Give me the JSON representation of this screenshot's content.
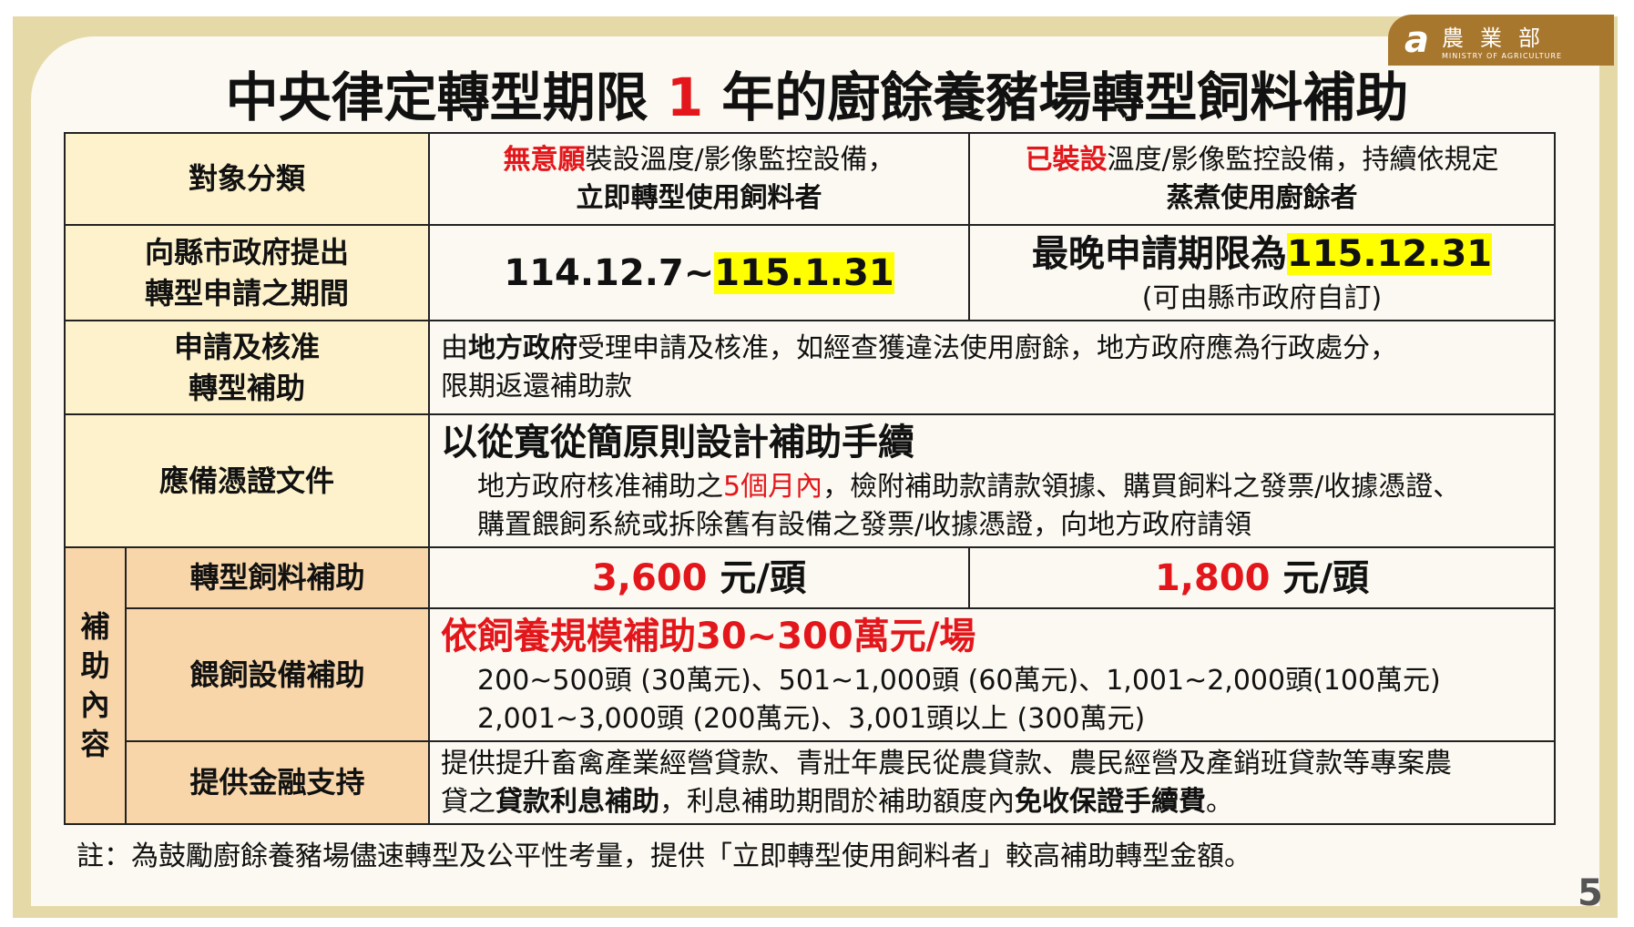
{
  "logo": {
    "zh": "農業部",
    "en": "MINISTRY OF AGRICULTURE"
  },
  "title": {
    "pre": "中央律定轉型期限 ",
    "num": "1",
    "post": " 年的廚餘養豬場轉型飼料補助"
  },
  "rows": {
    "category": {
      "label": "對象分類",
      "a_red": "無意願",
      "a_rest": "裝設溫度/影像監控設備，",
      "a_line2": "立即轉型使用飼料者",
      "b_red": "已裝設",
      "b_rest": "溫度/影像監控設備，持續依規定",
      "b_line2": "蒸煮使用廚餘者"
    },
    "period": {
      "label1": "向縣市政府提出",
      "label2": "轉型申請之期間",
      "a_pre": "114.12.7~",
      "a_hl": "115.1.31",
      "b_pre": "最晚申請期限為",
      "b_hl": "115.12.31",
      "b_note": "(可由縣市政府自訂)"
    },
    "approval": {
      "label1": "申請及核准",
      "label2": "轉型補助",
      "pre": "由",
      "bold": "地方政府",
      "post": "受理申請及核准，如經查獲違法使用廚餘，地方政府應為行政處分，",
      "line2": "限期返還補助款"
    },
    "documents": {
      "label": "應備憑證文件",
      "heading": "以從寬從簡原則設計補助手續",
      "l1_pre": "地方政府核准補助之",
      "l1_red": "5個月內",
      "l1_post": "，檢附補助款請款領據、購買飼料之發票/收據憑證、",
      "line2": "購置餵飼系統或拆除舊有設備之發票/收據憑證，向地方政府請領"
    },
    "subsidy": {
      "group_label": [
        "補",
        "助",
        "內",
        "容"
      ],
      "feed": {
        "label": "轉型飼料補助",
        "a_num": "3,600",
        "a_unit": " 元/頭",
        "b_num": "1,800",
        "b_unit": " 元/頭"
      },
      "equipment": {
        "label": "餵飼設備補助",
        "heading": "依飼養規模補助30~300萬元/場",
        "line1": "200~500頭 (30萬元)、501~1,000頭 (60萬元)、1,001~2,000頭(100萬元)",
        "line2": "2,001~3,000頭 (200萬元)、3,001頭以上 (300萬元)"
      },
      "finance": {
        "label": "提供金融支持",
        "line1": "提供提升畜禽產業經營貸款、青壯年農民從農貸款、農民經營及產銷班貸款等專案農",
        "l2_a": "貸之",
        "l2_b": "貸款利息補助",
        "l2_c": "，利息補助期間於補助額度內",
        "l2_d": "免收保證手續費",
        "l2_e": "。"
      }
    }
  },
  "note": "註：為鼓勵廚餘養豬場儘速轉型及公平性考量，提供「立即轉型使用飼料者」較高補助轉型金額。",
  "page_number": "5",
  "colors": {
    "red": "#e3161b",
    "highlight": "#ffff00",
    "header_bg": "#fdf2cc",
    "subsidy_bg": "#f8d6a9",
    "frame": "#e6d9a8",
    "logo_bg": "#a8772e"
  }
}
